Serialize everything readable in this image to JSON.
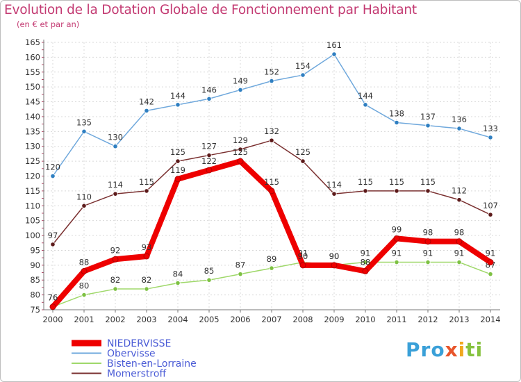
{
  "title": "Evolution de la Dotation Globale de Fonctionnement par Habitant",
  "subtitle": "(en € et par an)",
  "logo": {
    "p1": "Pro",
    "p2": "x",
    "p3": "i",
    "p4": "ti"
  },
  "chart_data": {
    "type": "line",
    "title": "Evolution de la Dotation Globale de Fonctionnement par Habitant",
    "ylabel": "(en € et par an)",
    "x": [
      "2000",
      "2001",
      "2002",
      "2003",
      "2004",
      "2005",
      "2006",
      "2007",
      "2008",
      "2009",
      "2010",
      "2011",
      "2012",
      "2013",
      "2014"
    ],
    "ylim": [
      75,
      165
    ],
    "yticks": [
      75,
      80,
      85,
      90,
      95,
      100,
      105,
      110,
      115,
      120,
      125,
      130,
      135,
      140,
      145,
      150,
      155,
      160,
      165
    ],
    "legend_position": "bottom-left",
    "series": [
      {
        "name": "NIEDERVISSE",
        "color": "#ee0000",
        "marker": "#ee0000",
        "bold": true,
        "values": [
          76,
          88,
          92,
          93,
          119,
          122,
          125,
          115,
          90,
          90,
          88,
          99,
          98,
          98,
          91
        ]
      },
      {
        "name": "Obervisse",
        "color": "#6fa8dc",
        "marker": "#2f7fc1",
        "bold": false,
        "values": [
          120,
          135,
          130,
          142,
          144,
          146,
          149,
          152,
          154,
          161,
          144,
          138,
          137,
          136,
          133
        ]
      },
      {
        "name": "Bisten-en-Lorraine",
        "color": "#9fd86a",
        "marker": "#7dc142",
        "bold": false,
        "values": [
          76,
          80,
          82,
          82,
          84,
          85,
          87,
          89,
          91,
          90,
          91,
          91,
          91,
          91,
          87
        ]
      },
      {
        "name": "Momerstroff",
        "color": "#7a3030",
        "marker": "#5c1a1a",
        "bold": false,
        "values": [
          97,
          110,
          114,
          115,
          125,
          127,
          129,
          132,
          125,
          114,
          115,
          115,
          115,
          112,
          107
        ]
      }
    ]
  }
}
